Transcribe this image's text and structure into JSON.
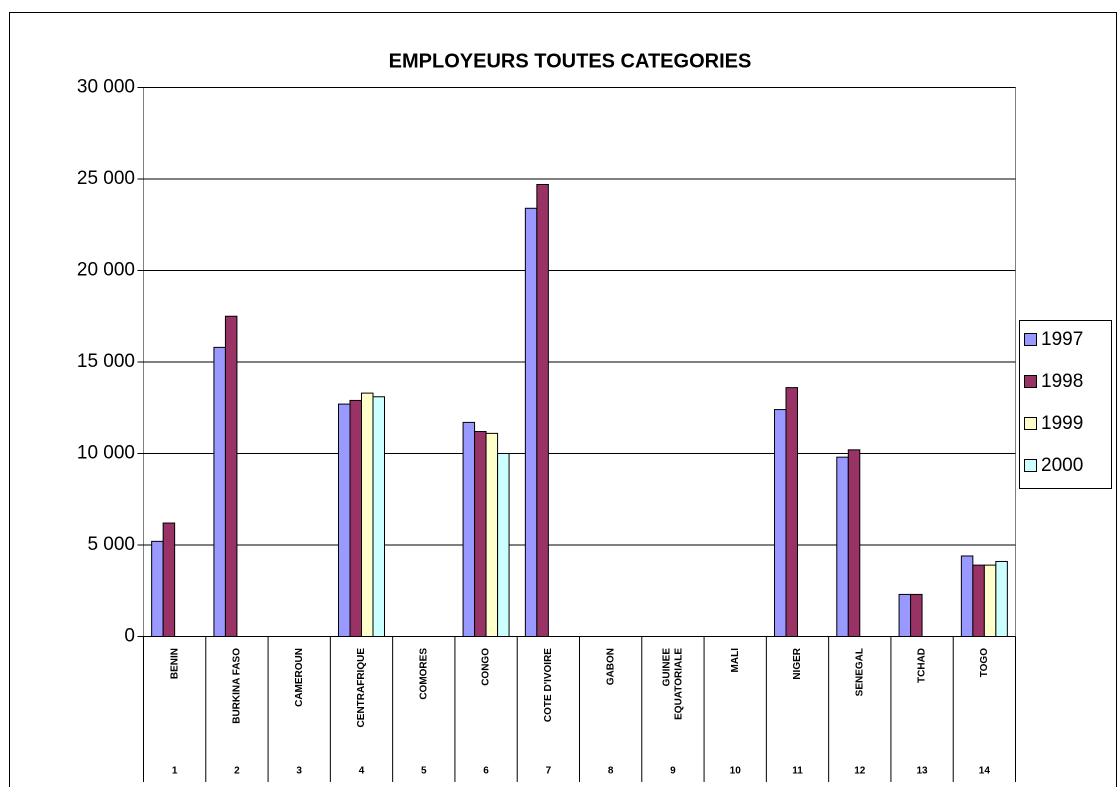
{
  "chart_data": {
    "type": "bar",
    "title": "EMPLOYEURS TOUTES CATEGORIES",
    "categories": [
      "BENIN",
      "BURKINA FASO",
      "CAMEROUN",
      "CENTRAFRIQUE",
      "COMORES",
      "CONGO",
      "COTE D'IVOIRE",
      "GABON",
      [
        "GUINEE",
        "EQUATORIALE"
      ],
      "MALI",
      "NIGER",
      "SENEGAL",
      "TCHAD",
      "TOGO"
    ],
    "category_numbers": [
      1,
      2,
      3,
      4,
      5,
      6,
      7,
      8,
      9,
      10,
      11,
      12,
      13,
      14
    ],
    "series": [
      {
        "name": "1997",
        "color": "#9999ff",
        "values": [
          5200,
          15800,
          null,
          12700,
          null,
          11700,
          23400,
          null,
          null,
          null,
          12400,
          9800,
          2300,
          4400
        ]
      },
      {
        "name": "1998",
        "color": "#993366",
        "values": [
          6200,
          17500,
          null,
          12900,
          null,
          11200,
          24700,
          null,
          null,
          null,
          13600,
          10200,
          2300,
          3900
        ]
      },
      {
        "name": "1999",
        "color": "#ffffcc",
        "values": [
          null,
          null,
          null,
          13300,
          null,
          11100,
          null,
          null,
          null,
          null,
          null,
          null,
          null,
          3900
        ]
      },
      {
        "name": "2000",
        "color": "#ccffff",
        "values": [
          null,
          null,
          null,
          13100,
          null,
          10000,
          null,
          null,
          null,
          null,
          null,
          null,
          null,
          4100
        ]
      }
    ],
    "ylim": [
      0,
      30000
    ],
    "yticks": [
      0,
      {
        "value": 5000,
        "label": "5 000"
      },
      {
        "value": 10000,
        "label": "10 000"
      },
      {
        "value": 15000,
        "label": "15 000"
      },
      {
        "value": 20000,
        "label": "20 000"
      },
      {
        "value": 25000,
        "label": "25 000"
      },
      {
        "value": 30000,
        "label": "30 000"
      }
    ],
    "grid": true,
    "legend": "right"
  }
}
